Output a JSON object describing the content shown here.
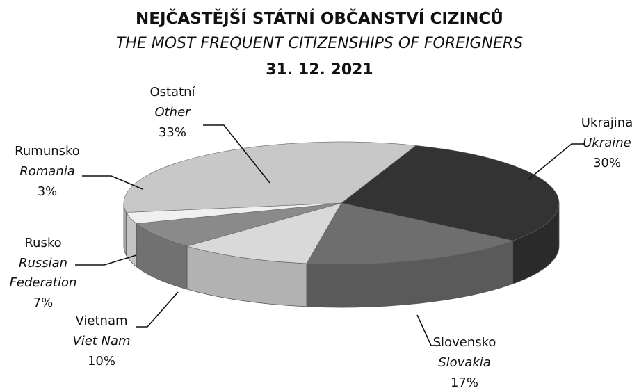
{
  "chart_data": {
    "type": "pie3d",
    "title": "NEJČASTĚJŠÍ STÁTNÍ OBČANSTVÍ CIZINCŮ",
    "subtitle": "THE MOST FREQUENT CITIZENSHIPS OF FOREIGNERS",
    "date": "31. 12. 2021",
    "categories": [
      "Ukrajina",
      "Slovensko",
      "Vietnam",
      "Rusko",
      "Rumunsko",
      "Ostatní"
    ],
    "categories_en": [
      "Ukraine",
      "Slovakia",
      "Viet Nam",
      "Russian Federation",
      "Romania",
      "Other"
    ],
    "values": [
      30,
      17,
      10,
      7,
      3,
      33
    ],
    "value_labels": [
      "30%",
      "17%",
      "10%",
      "7%",
      "3%",
      "33%"
    ],
    "colors": [
      "#333333",
      "#6e6e6e",
      "#d9d9d9",
      "#8a8a8a",
      "#f0f0f0",
      "#c8c8c8"
    ]
  }
}
